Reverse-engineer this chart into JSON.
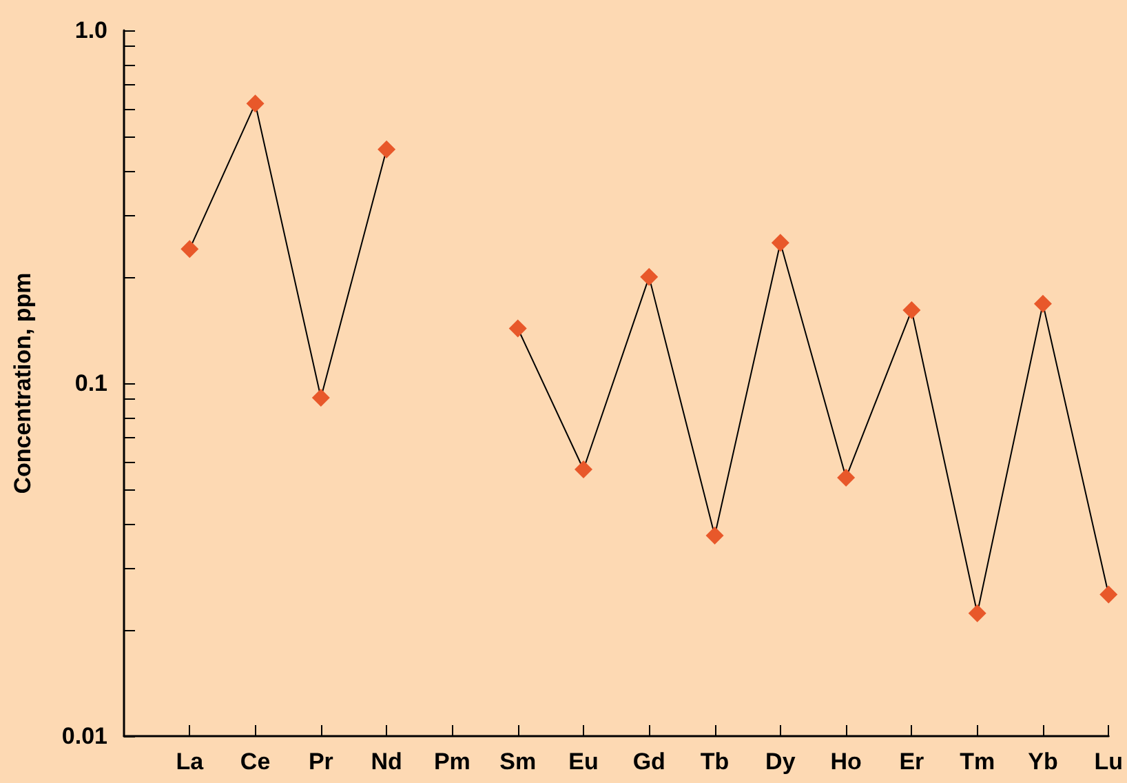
{
  "chart_data": {
    "type": "line",
    "ylabel": "Concentration, ppm",
    "categories": [
      "La",
      "Ce",
      "Pr",
      "Nd",
      "Pm",
      "Sm",
      "Eu",
      "Gd",
      "Tb",
      "Dy",
      "Ho",
      "Er",
      "Tm",
      "Yb",
      "Lu"
    ],
    "series": [
      {
        "color": "#e8582a",
        "values": [
          0.24,
          0.62,
          0.091,
          0.46,
          null,
          0.143,
          0.057,
          0.2,
          0.037,
          0.25,
          0.054,
          0.161,
          0.0223,
          0.168,
          0.0252
        ]
      }
    ],
    "log": "y",
    "ylim": [
      0.01,
      1
    ],
    "yticks": [
      0.01,
      {
        "value": 0.02,
        "label": null
      },
      {
        "value": 0.03,
        "label": null
      },
      {
        "value": 0.04,
        "label": null
      },
      {
        "value": 0.05,
        "label": null
      },
      {
        "value": 0.06,
        "label": null
      },
      {
        "value": 0.07,
        "label": null
      },
      {
        "value": 0.08,
        "label": null
      },
      {
        "value": 0.09,
        "label": null
      },
      0.1,
      {
        "value": 0.2,
        "label": null
      },
      {
        "value": 0.3,
        "label": null
      },
      {
        "value": 0.4,
        "label": null
      },
      {
        "value": 0.5,
        "label": null
      },
      {
        "value": 0.6,
        "label": null
      },
      {
        "value": 0.7,
        "label": null
      },
      {
        "value": 0.8,
        "label": null
      },
      {
        "value": 0.9,
        "label": null
      },
      {
        "value": 1,
        "label": "1.0"
      }
    ],
    "marker": "diamond",
    "line_style": "solid",
    "grid": false
  }
}
